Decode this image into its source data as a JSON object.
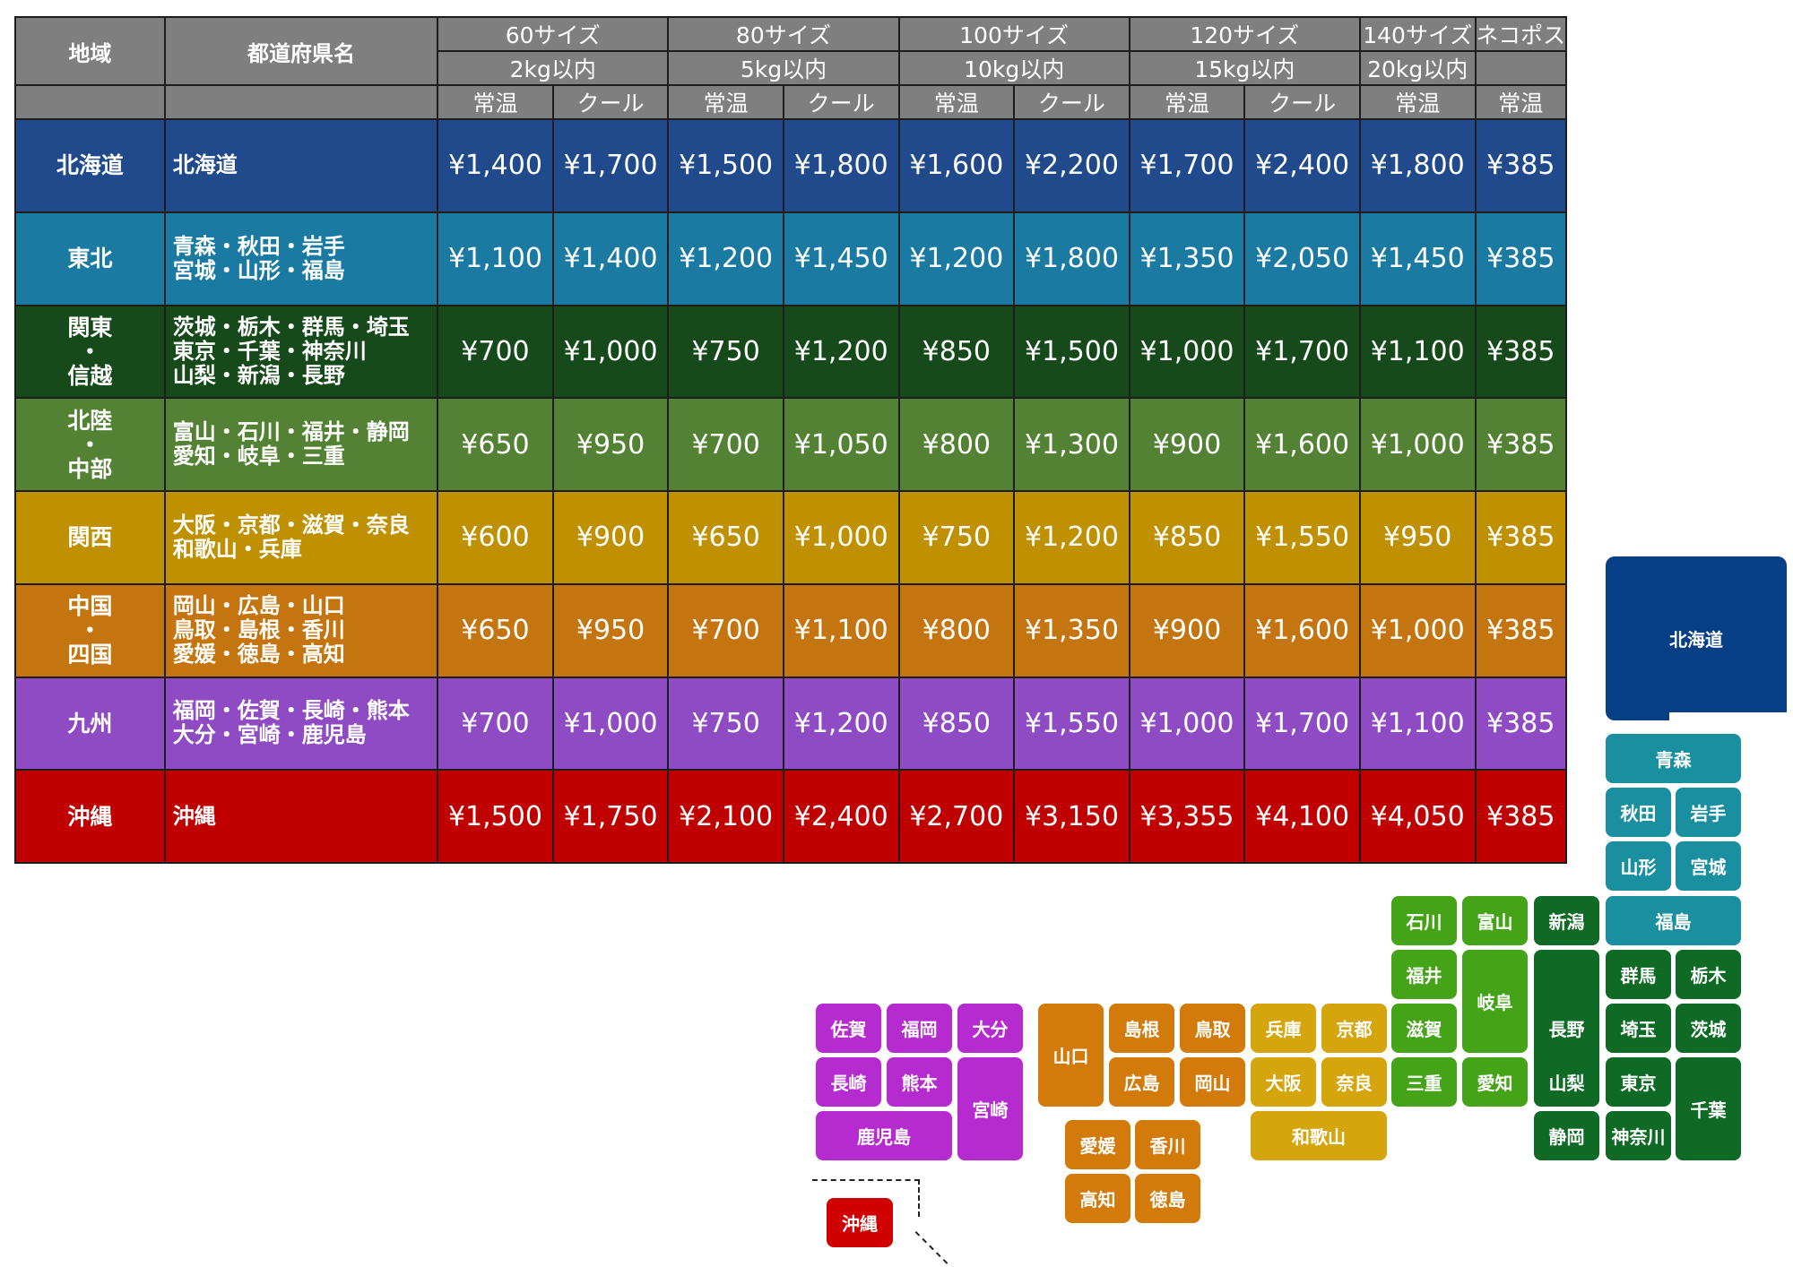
{
  "table": {
    "header": {
      "region_label": "地域",
      "prefecture_label": "都道府県名",
      "sizes": [
        "60サイズ",
        "80サイズ",
        "100サイズ",
        "120サイズ",
        "140サイズ",
        "ネコポス"
      ],
      "weights": [
        "2kg以内",
        "5kg以内",
        "10kg以内",
        "15kg以内",
        "20kg以内",
        ""
      ],
      "temps": [
        "常温",
        "クール",
        "常温",
        "クール",
        "常温",
        "クール",
        "常温",
        "クール",
        "常温",
        "常温"
      ]
    },
    "rows": [
      {
        "region": [
          "北海道"
        ],
        "prefectures": [
          "北海道"
        ],
        "color": "#204a8b",
        "prices": [
          "¥1,400",
          "¥1,700",
          "¥1,500",
          "¥1,800",
          "¥1,600",
          "¥2,200",
          "¥1,700",
          "¥2,400",
          "¥1,800",
          "¥385"
        ]
      },
      {
        "region": [
          "東北"
        ],
        "prefectures": [
          "青森・秋田・岩手",
          "宮城・山形・福島"
        ],
        "color": "#1a7aa1",
        "prices": [
          "¥1,100",
          "¥1,400",
          "¥1,200",
          "¥1,450",
          "¥1,200",
          "¥1,800",
          "¥1,350",
          "¥2,050",
          "¥1,450",
          "¥385"
        ]
      },
      {
        "region": [
          "関東",
          "・",
          "信越"
        ],
        "prefectures": [
          "茨城・栃木・群馬・埼玉",
          "東京・千葉・神奈川",
          "山梨・新潟・長野"
        ],
        "color": "#174a1a",
        "prices": [
          "¥700",
          "¥1,000",
          "¥750",
          "¥1,200",
          "¥850",
          "¥1,500",
          "¥1,000",
          "¥1,700",
          "¥1,100",
          "¥385"
        ]
      },
      {
        "region": [
          "北陸",
          "・",
          "中部"
        ],
        "prefectures": [
          "富山・石川・福井・静岡",
          "愛知・岐阜・三重"
        ],
        "color": "#548235",
        "prices": [
          "¥650",
          "¥950",
          "¥700",
          "¥1,050",
          "¥800",
          "¥1,300",
          "¥900",
          "¥1,600",
          "¥1,000",
          "¥385"
        ]
      },
      {
        "region": [
          "関西"
        ],
        "prefectures": [
          "大阪・京都・滋賀・奈良",
          "和歌山・兵庫"
        ],
        "color": "#bf9000",
        "prices": [
          "¥600",
          "¥900",
          "¥650",
          "¥1,000",
          "¥750",
          "¥1,200",
          "¥850",
          "¥1,550",
          "¥950",
          "¥385"
        ]
      },
      {
        "region": [
          "中国",
          "・",
          "四国"
        ],
        "prefectures": [
          "岡山・広島・山口",
          "鳥取・島根・香川",
          "愛媛・徳島・高知"
        ],
        "color": "#c5750f",
        "prices": [
          "¥650",
          "¥950",
          "¥700",
          "¥1,100",
          "¥800",
          "¥1,350",
          "¥900",
          "¥1,600",
          "¥1,000",
          "¥385"
        ]
      },
      {
        "region": [
          "九州"
        ],
        "prefectures": [
          "福岡・佐賀・長崎・熊本",
          "大分・宮崎・鹿児島"
        ],
        "color": "#8e4bc4",
        "prices": [
          "¥700",
          "¥1,000",
          "¥750",
          "¥1,200",
          "¥850",
          "¥1,550",
          "¥1,000",
          "¥1,700",
          "¥1,100",
          "¥385"
        ]
      },
      {
        "region": [
          "沖縄"
        ],
        "prefectures": [
          "沖縄"
        ],
        "color": "#c00000",
        "prices": [
          "¥1,500",
          "¥1,750",
          "¥2,100",
          "¥2,400",
          "¥2,700",
          "¥3,150",
          "¥3,355",
          "¥4,100",
          "¥4,050",
          "¥385"
        ]
      }
    ]
  },
  "map": {
    "colors": {
      "hokkaido": "#063f86",
      "tohoku": "#1a8fa0",
      "kanto": "#0f6a25",
      "chubu": "#45a318",
      "kansai": "#d4a50c",
      "chugoku_shikoku": "#d27a0a",
      "kyushu": "#b62bd0",
      "okinawa": "#d00000"
    },
    "labels": {
      "hokkaido": "北海道",
      "aomori": "青森",
      "akita": "秋田",
      "iwate": "岩手",
      "yamagata": "山形",
      "miyagi": "宮城",
      "fukushima": "福島",
      "gunma": "群馬",
      "tochigi": "栃木",
      "saitama": "埼玉",
      "ibaraki": "茨城",
      "tokyo": "東京",
      "chiba": "千葉",
      "kanagawa": "神奈川",
      "yamanashi": "山梨",
      "niigata": "新潟",
      "nagano": "長野",
      "ishikawa": "石川",
      "toyama": "富山",
      "fukui": "福井",
      "gifu": "岐阜",
      "aichi": "愛知",
      "shizuoka": "静岡",
      "mie": "三重",
      "shiga": "滋賀",
      "hyogo": "兵庫",
      "kyoto": "京都",
      "osaka": "大阪",
      "nara": "奈良",
      "wakayama": "和歌山",
      "shimane": "島根",
      "tottori": "鳥取",
      "hiroshima": "広島",
      "okayama": "岡山",
      "yamaguchi": "山口",
      "ehime": "愛媛",
      "kagawa": "香川",
      "kochi": "高知",
      "tokushima": "徳島",
      "saga": "佐賀",
      "fukuoka": "福岡",
      "oita": "大分",
      "nagasaki": "長崎",
      "kumamoto": "熊本",
      "miyazaki": "宮崎",
      "kagoshima": "鹿児島",
      "okinawa": "沖縄"
    }
  }
}
